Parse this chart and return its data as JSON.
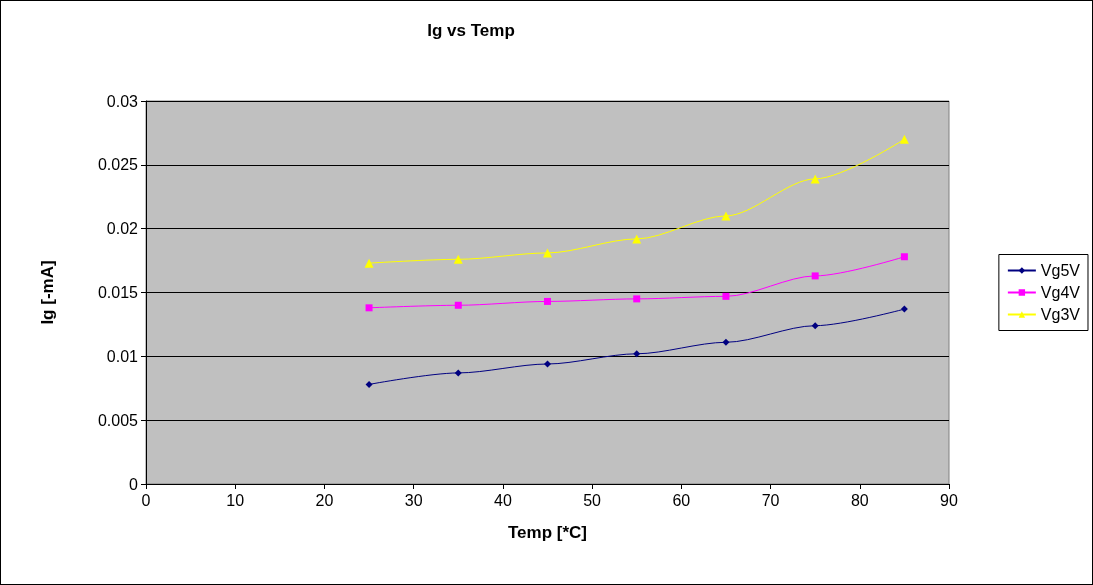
{
  "chart_data": {
    "type": "line",
    "title": "Ig vs Temp",
    "xlabel": "Temp [*C]",
    "ylabel": "Ig [-mA]",
    "x": [
      25,
      35,
      45,
      55,
      65,
      75,
      85
    ],
    "series": [
      {
        "name": "Vg5V",
        "color": "#000080",
        "marker": "diamond",
        "values": [
          0.0078,
          0.0087,
          0.0094,
          0.0102,
          0.0111,
          0.0124,
          0.0137
        ]
      },
      {
        "name": "Vg4V",
        "color": "#ff00ff",
        "marker": "square",
        "values": [
          0.0138,
          0.014,
          0.0143,
          0.0145,
          0.0147,
          0.0163,
          0.0178
        ]
      },
      {
        "name": "Vg3V",
        "color": "#ffff00",
        "marker": "triangle",
        "values": [
          0.0173,
          0.0176,
          0.0181,
          0.0192,
          0.021,
          0.0239,
          0.027
        ]
      }
    ],
    "xlim": [
      0,
      90
    ],
    "xticks": [
      0,
      10,
      20,
      30,
      40,
      50,
      60,
      70,
      80,
      90
    ],
    "ylim": [
      0,
      0.03
    ],
    "yticks": [
      0,
      0.005,
      0.01,
      0.015,
      0.02,
      0.025,
      0.03
    ],
    "grid": "y",
    "legend": "right",
    "line_style": "solid"
  }
}
